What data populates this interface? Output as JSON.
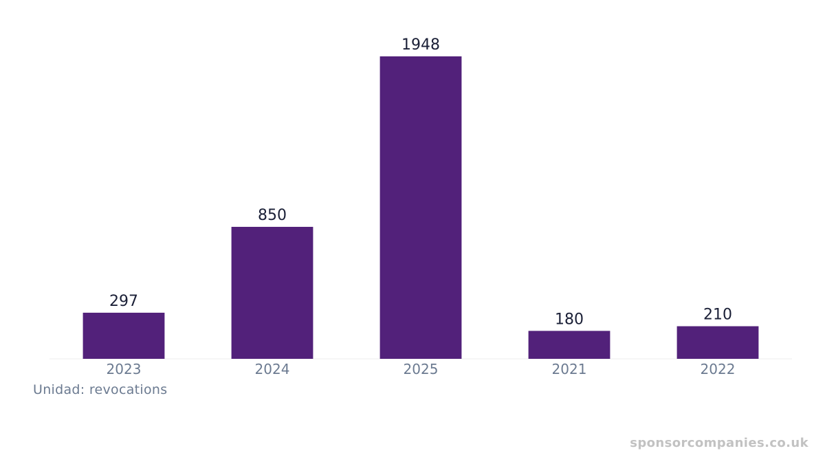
{
  "chart_data": {
    "type": "bar",
    "categories": [
      "2023",
      "2024",
      "2025",
      "2021",
      "2022"
    ],
    "values": [
      297,
      850,
      1948,
      180,
      210
    ],
    "data_labels": [
      "297",
      "850",
      "1948",
      "180",
      "210"
    ],
    "title": "",
    "xlabel": "",
    "ylabel": "",
    "ylim": [
      0,
      1948
    ],
    "grid": false,
    "legend": "none",
    "bar_color": "#52217a"
  },
  "unit_label": "Unidad: revocations",
  "watermark": "sponsorcompanies.co.uk"
}
